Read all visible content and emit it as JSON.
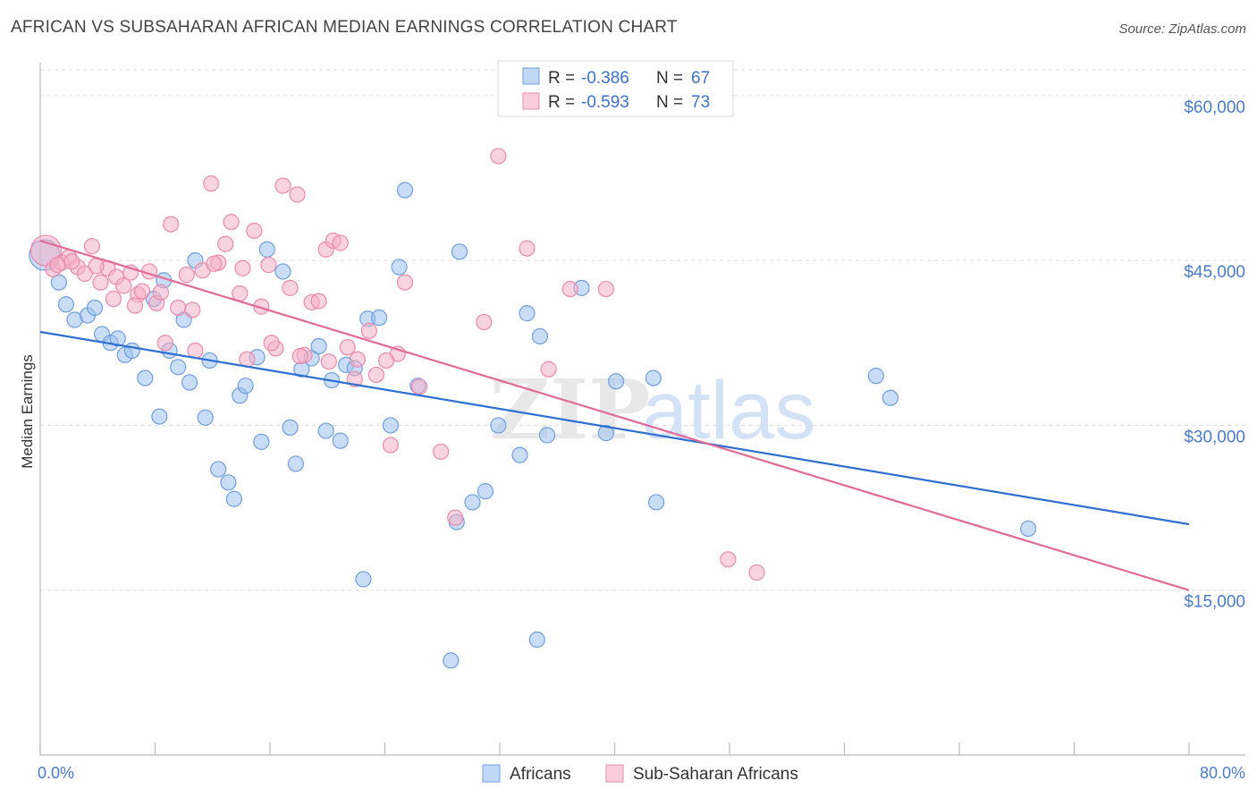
{
  "header": {
    "title": "AFRICAN VS SUBSAHARAN AFRICAN MEDIAN EARNINGS CORRELATION CHART",
    "source": "Source: ZipAtlas.com"
  },
  "legend": {
    "r_label": "R =",
    "n_label": "N =",
    "series": [
      {
        "r": "-0.386",
        "n": "67",
        "color": "#9ec1ef"
      },
      {
        "r": "-0.593",
        "n": "73",
        "color": "#f5afc6"
      }
    ]
  },
  "watermark": {
    "zip": "ZIP",
    "atlas": "atlas"
  },
  "chart_data": {
    "type": "scatter",
    "xlabel": "",
    "ylabel": "Median Earnings",
    "xlim": [
      0,
      80
    ],
    "ylim": [
      0,
      63000
    ],
    "x_tick_labels": [
      "0.0%",
      "80.0%"
    ],
    "y_ticks": [
      {
        "value": 15000,
        "label": "$15,000"
      },
      {
        "value": 30000,
        "label": "$30,000"
      },
      {
        "value": 45000,
        "label": "$45,000"
      },
      {
        "value": 60000,
        "label": "$60,000"
      }
    ],
    "grid": true,
    "series": [
      {
        "name": "Africans",
        "color": "#9ec1ef",
        "stroke": "#6f9fe0",
        "trend": {
          "x": [
            0,
            80
          ],
          "y": [
            38500,
            21000
          ],
          "color": "#2f6fd0"
        },
        "points": [
          [
            0.3,
            45500
          ],
          [
            1.3,
            43000
          ],
          [
            1.8,
            41000
          ],
          [
            2.4,
            39600
          ],
          [
            3.3,
            40000
          ],
          [
            3.8,
            40700
          ],
          [
            4.3,
            38300
          ],
          [
            4.9,
            37500
          ],
          [
            5.4,
            37900
          ],
          [
            5.9,
            36400
          ],
          [
            6.4,
            36800
          ],
          [
            7.3,
            34300
          ],
          [
            7.9,
            41500
          ],
          [
            8.3,
            30800
          ],
          [
            8.6,
            43200
          ],
          [
            9.0,
            36800
          ],
          [
            9.6,
            35300
          ],
          [
            10.0,
            39600
          ],
          [
            10.4,
            33900
          ],
          [
            10.8,
            45000
          ],
          [
            11.5,
            30700
          ],
          [
            11.8,
            35900
          ],
          [
            12.4,
            26000
          ],
          [
            13.1,
            24800
          ],
          [
            13.5,
            23300
          ],
          [
            13.9,
            32700
          ],
          [
            14.3,
            33600
          ],
          [
            15.1,
            36200
          ],
          [
            15.4,
            28500
          ],
          [
            15.8,
            46000
          ],
          [
            16.9,
            44000
          ],
          [
            17.4,
            29800
          ],
          [
            17.8,
            26500
          ],
          [
            18.2,
            35100
          ],
          [
            18.9,
            36100
          ],
          [
            19.4,
            37200
          ],
          [
            19.9,
            29500
          ],
          [
            20.3,
            34100
          ],
          [
            20.9,
            28600
          ],
          [
            21.3,
            35500
          ],
          [
            21.9,
            35200
          ],
          [
            22.8,
            39700
          ],
          [
            23.6,
            39800
          ],
          [
            24.4,
            30000
          ],
          [
            25.0,
            44400
          ],
          [
            25.4,
            51400
          ],
          [
            26.3,
            33600
          ],
          [
            29.0,
            21200
          ],
          [
            29.2,
            45800
          ],
          [
            30.1,
            23000
          ],
          [
            31.9,
            30000
          ],
          [
            33.4,
            27300
          ],
          [
            33.9,
            40200
          ],
          [
            34.8,
            38100
          ],
          [
            35.3,
            29100
          ],
          [
            37.7,
            42500
          ],
          [
            39.4,
            29300
          ],
          [
            40.1,
            34000
          ],
          [
            42.7,
            34300
          ],
          [
            42.9,
            23000
          ],
          [
            58.2,
            34500
          ],
          [
            59.2,
            32500
          ],
          [
            68.8,
            20600
          ],
          [
            22.5,
            16000
          ],
          [
            28.6,
            8600
          ],
          [
            34.6,
            10500
          ],
          [
            31.0,
            24000
          ]
        ]
      },
      {
        "name": "Sub-Saharan Africans",
        "color": "#f5afc6",
        "stroke": "#eb8aab",
        "trend": {
          "x": [
            0,
            80
          ],
          "y": [
            46800,
            15000
          ],
          "color": "#e26b96"
        },
        "points": [
          [
            0.4,
            45900
          ],
          [
            0.9,
            44200
          ],
          [
            1.5,
            44800
          ],
          [
            2.0,
            45300
          ],
          [
            2.6,
            44400
          ],
          [
            3.1,
            43800
          ],
          [
            3.6,
            46300
          ],
          [
            4.2,
            43000
          ],
          [
            4.7,
            44300
          ],
          [
            5.3,
            43500
          ],
          [
            5.8,
            42700
          ],
          [
            6.3,
            43900
          ],
          [
            6.8,
            41900
          ],
          [
            7.1,
            42200
          ],
          [
            7.6,
            44000
          ],
          [
            8.1,
            41100
          ],
          [
            8.7,
            37500
          ],
          [
            9.1,
            48300
          ],
          [
            9.6,
            40700
          ],
          [
            10.2,
            43700
          ],
          [
            10.8,
            36800
          ],
          [
            11.3,
            44100
          ],
          [
            11.9,
            52000
          ],
          [
            12.4,
            44800
          ],
          [
            12.9,
            46500
          ],
          [
            13.3,
            48500
          ],
          [
            13.9,
            42000
          ],
          [
            14.4,
            36000
          ],
          [
            14.9,
            47700
          ],
          [
            15.4,
            40800
          ],
          [
            15.9,
            44600
          ],
          [
            16.4,
            37000
          ],
          [
            16.9,
            51800
          ],
          [
            17.4,
            42500
          ],
          [
            17.9,
            51000
          ],
          [
            18.4,
            36400
          ],
          [
            18.9,
            41200
          ],
          [
            19.4,
            41300
          ],
          [
            19.9,
            46000
          ],
          [
            20.4,
            46800
          ],
          [
            20.9,
            46600
          ],
          [
            21.4,
            37100
          ],
          [
            21.9,
            34200
          ],
          [
            22.9,
            38600
          ],
          [
            23.4,
            34600
          ],
          [
            24.4,
            28200
          ],
          [
            24.9,
            36500
          ],
          [
            25.4,
            43000
          ],
          [
            26.4,
            33500
          ],
          [
            27.9,
            27600
          ],
          [
            28.9,
            21600
          ],
          [
            30.9,
            39400
          ],
          [
            31.9,
            54500
          ],
          [
            33.9,
            46100
          ],
          [
            35.4,
            35100
          ],
          [
            36.9,
            42400
          ],
          [
            39.4,
            42400
          ],
          [
            47.9,
            17800
          ],
          [
            49.9,
            16600
          ],
          [
            1.2,
            44600
          ],
          [
            2.2,
            44900
          ],
          [
            3.9,
            44500
          ],
          [
            5.1,
            41500
          ],
          [
            6.6,
            40900
          ],
          [
            8.4,
            42100
          ],
          [
            10.6,
            40500
          ],
          [
            12.1,
            44700
          ],
          [
            14.1,
            44300
          ],
          [
            16.1,
            37500
          ],
          [
            18.1,
            36300
          ],
          [
            20.1,
            35800
          ],
          [
            22.1,
            36000
          ],
          [
            24.1,
            35900
          ]
        ]
      }
    ]
  }
}
